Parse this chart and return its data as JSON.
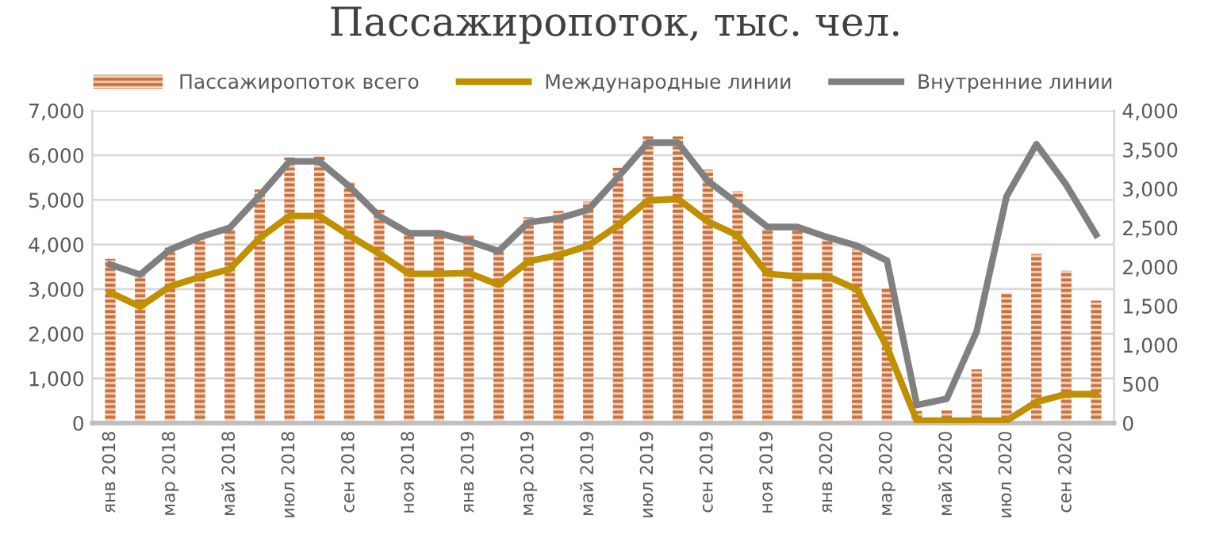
{
  "chart_data": {
    "type": "bar",
    "title": "Пассажиропоток, тыс. чел.",
    "categories": [
      "янв 2018",
      null,
      "мар 2018",
      null,
      "май 2018",
      null,
      "июл 2018",
      null,
      "сен 2018",
      null,
      "ноя 2018",
      null,
      "янв 2019",
      null,
      "мар 2019",
      null,
      "май 2019",
      null,
      "июл 2019",
      null,
      "сен 2019",
      null,
      "ноя 2019",
      null,
      "янв 2020",
      null,
      "мар 2020",
      null,
      "май 2020",
      null,
      "июл 2020",
      null,
      "сен 2020",
      null
    ],
    "series": [
      {
        "name": "Пассажиропоток всего",
        "color": "#c8703a",
        "values": [
          3680,
          3330,
          3930,
          4170,
          4350,
          5230,
          5950,
          5990,
          5400,
          4780,
          4320,
          4320,
          4220,
          3850,
          4610,
          4750,
          4960,
          5720,
          6420,
          6420,
          5680,
          5190,
          4350,
          4350,
          4200,
          3910,
          3020,
          270,
          290,
          1200,
          2920,
          3790,
          3410,
          2740
        ]
      },
      {
        "name": "Международные линии",
        "type": "line",
        "axis": "y2",
        "color": "#c09000",
        "values": [
          1670,
          1490,
          1750,
          1870,
          1970,
          2370,
          2650,
          2650,
          2400,
          2170,
          1910,
          1910,
          1920,
          1770,
          2070,
          2150,
          2270,
          2530,
          2850,
          2870,
          2580,
          2400,
          1910,
          1880,
          1880,
          1710,
          970,
          30,
          30,
          30,
          30,
          270,
          370,
          370
        ]
      },
      {
        "name": "Внутренние линии",
        "type": "line",
        "axis": "y2",
        "color": "#808080",
        "values": [
          2030,
          1900,
          2220,
          2380,
          2500,
          2910,
          3350,
          3350,
          3030,
          2650,
          2430,
          2430,
          2330,
          2200,
          2570,
          2620,
          2730,
          3150,
          3590,
          3590,
          3100,
          2810,
          2510,
          2510,
          2380,
          2270,
          2080,
          230,
          310,
          1170,
          2900,
          3570,
          3050,
          2410
        ]
      }
    ],
    "ylim": [
      0,
      7000
    ],
    "yticks": [
      {
        "value": 0,
        "label": "0"
      },
      {
        "value": 1000,
        "label": "1,000"
      },
      {
        "value": 2000,
        "label": "2,000"
      },
      {
        "value": 3000,
        "label": "3,000"
      },
      {
        "value": 4000,
        "label": "4,000"
      },
      {
        "value": 5000,
        "label": "5,000"
      },
      {
        "value": 6000,
        "label": "6,000"
      },
      {
        "value": 7000,
        "label": "7,000"
      }
    ],
    "y2lim": [
      0,
      4000
    ],
    "y2ticks": [
      {
        "value": 0,
        "label": "0"
      },
      {
        "value": 500,
        "label": "500"
      },
      {
        "value": 1000,
        "label": "1,000"
      },
      {
        "value": 1500,
        "label": "1,500"
      },
      {
        "value": 2000,
        "label": "2,000"
      },
      {
        "value": 2500,
        "label": "2,500"
      },
      {
        "value": 3000,
        "label": "3,000"
      },
      {
        "value": 3500,
        "label": "3,500"
      },
      {
        "value": 4000,
        "label": "4,000"
      }
    ],
    "grid": "y",
    "legend": "top"
  }
}
